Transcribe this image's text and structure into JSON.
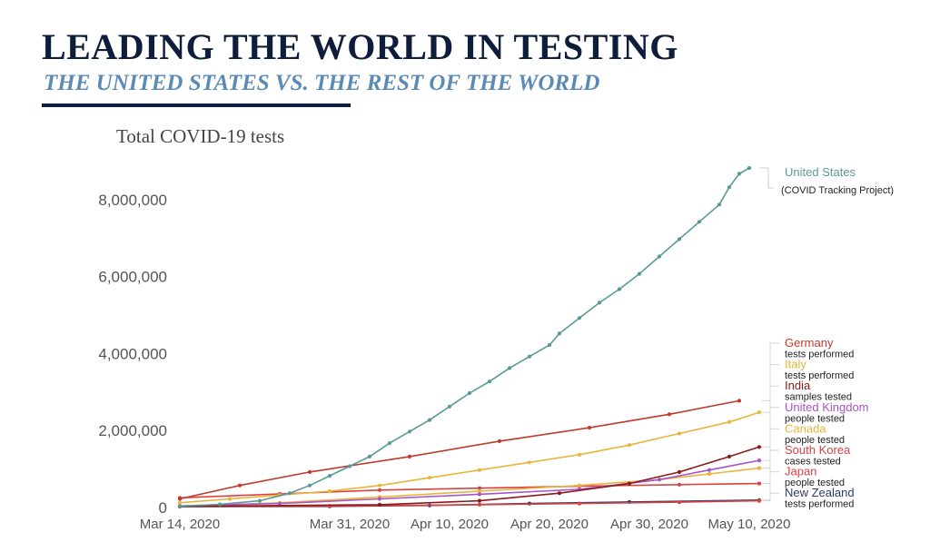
{
  "header": {
    "title": "LEADING THE WORLD IN TESTING",
    "subtitle": "THE UNITED STATES VS. THE REST OF THE WORLD"
  },
  "chart_data": {
    "type": "line",
    "title": "Total COVID-19 tests",
    "xlabel": "",
    "ylabel": "",
    "ylim": [
      0,
      8800000
    ],
    "yticks": [
      0,
      2000000,
      4000000,
      6000000,
      8000000
    ],
    "ytick_labels": [
      "0",
      "2,000,000",
      "4,000,000",
      "6,000,000",
      "8,000,000"
    ],
    "xlim": [
      0,
      58
    ],
    "xticks": [
      0,
      17,
      27,
      37,
      47,
      57
    ],
    "xtick_labels": [
      "Mar 14, 2020",
      "Mar 31, 2020",
      "Apr 10, 2020",
      "Apr 20, 2020",
      "Apr 30, 2020",
      "May 10, 2020"
    ],
    "grid": false,
    "legend": "right",
    "series": [
      {
        "name": "United States",
        "note": "(COVID Tracking Project)",
        "color": "#5a9a96",
        "points": [
          [
            0,
            10000
          ],
          [
            4,
            60000
          ],
          [
            8,
            150000
          ],
          [
            11,
            350000
          ],
          [
            13,
            550000
          ],
          [
            15,
            800000
          ],
          [
            17,
            1050000
          ],
          [
            19,
            1300000
          ],
          [
            21,
            1650000
          ],
          [
            23,
            1950000
          ],
          [
            25,
            2250000
          ],
          [
            27,
            2600000
          ],
          [
            29,
            2950000
          ],
          [
            31,
            3250000
          ],
          [
            33,
            3600000
          ],
          [
            35,
            3900000
          ],
          [
            37,
            4200000
          ],
          [
            38,
            4500000
          ],
          [
            40,
            4900000
          ],
          [
            42,
            5300000
          ],
          [
            44,
            5650000
          ],
          [
            46,
            6050000
          ],
          [
            48,
            6500000
          ],
          [
            50,
            6950000
          ],
          [
            52,
            7400000
          ],
          [
            54,
            7850000
          ],
          [
            55,
            8300000
          ],
          [
            56,
            8650000
          ],
          [
            57,
            8800000
          ]
        ]
      },
      {
        "name": "Germany",
        "note": "tests performed",
        "color": "#c0392b",
        "points": [
          [
            0,
            200000
          ],
          [
            6,
            550000
          ],
          [
            13,
            900000
          ],
          [
            23,
            1300000
          ],
          [
            32,
            1700000
          ],
          [
            41,
            2050000
          ],
          [
            49,
            2400000
          ],
          [
            56,
            2750000
          ]
        ]
      },
      {
        "name": "Italy",
        "note": "tests performed",
        "color": "#e8b53a",
        "points": [
          [
            0,
            100000
          ],
          [
            5,
            200000
          ],
          [
            10,
            300000
          ],
          [
            15,
            400000
          ],
          [
            20,
            550000
          ],
          [
            25,
            750000
          ],
          [
            30,
            950000
          ],
          [
            35,
            1150000
          ],
          [
            40,
            1350000
          ],
          [
            45,
            1600000
          ],
          [
            50,
            1900000
          ],
          [
            55,
            2200000
          ],
          [
            58,
            2450000
          ]
        ]
      },
      {
        "name": "India",
        "note": "samples tested",
        "color": "#8b1a1a",
        "points": [
          [
            0,
            5000
          ],
          [
            20,
            50000
          ],
          [
            30,
            150000
          ],
          [
            38,
            350000
          ],
          [
            45,
            600000
          ],
          [
            50,
            900000
          ],
          [
            55,
            1300000
          ],
          [
            58,
            1550000
          ]
        ]
      },
      {
        "name": "United Kingdom",
        "note": "people tested",
        "color": "#a855c8",
        "points": [
          [
            0,
            20000
          ],
          [
            10,
            80000
          ],
          [
            20,
            200000
          ],
          [
            30,
            320000
          ],
          [
            40,
            450000
          ],
          [
            48,
            700000
          ],
          [
            53,
            950000
          ],
          [
            58,
            1200000
          ]
        ]
      },
      {
        "name": "Canada",
        "note": "people tested",
        "color": "#e8b53a",
        "points": [
          [
            0,
            10000
          ],
          [
            10,
            100000
          ],
          [
            20,
            250000
          ],
          [
            30,
            400000
          ],
          [
            40,
            550000
          ],
          [
            48,
            700000
          ],
          [
            53,
            850000
          ],
          [
            58,
            1000000
          ]
        ]
      },
      {
        "name": "South Korea",
        "note": "cases tested",
        "color": "#d94141",
        "points": [
          [
            0,
            230000
          ],
          [
            10,
            330000
          ],
          [
            20,
            430000
          ],
          [
            30,
            480000
          ],
          [
            40,
            530000
          ],
          [
            50,
            570000
          ],
          [
            58,
            600000
          ]
        ]
      },
      {
        "name": "Japan",
        "note": "people tested",
        "color": "#d94141",
        "points": [
          [
            0,
            3000
          ],
          [
            15,
            15000
          ],
          [
            30,
            50000
          ],
          [
            40,
            80000
          ],
          [
            50,
            115000
          ],
          [
            58,
            150000
          ]
        ]
      },
      {
        "name": "New Zealand",
        "note": "tests performed",
        "color": "#2c3e6e",
        "points": [
          [
            0,
            500
          ],
          [
            15,
            5000
          ],
          [
            25,
            30000
          ],
          [
            35,
            80000
          ],
          [
            45,
            120000
          ],
          [
            58,
            170000
          ]
        ]
      }
    ]
  }
}
